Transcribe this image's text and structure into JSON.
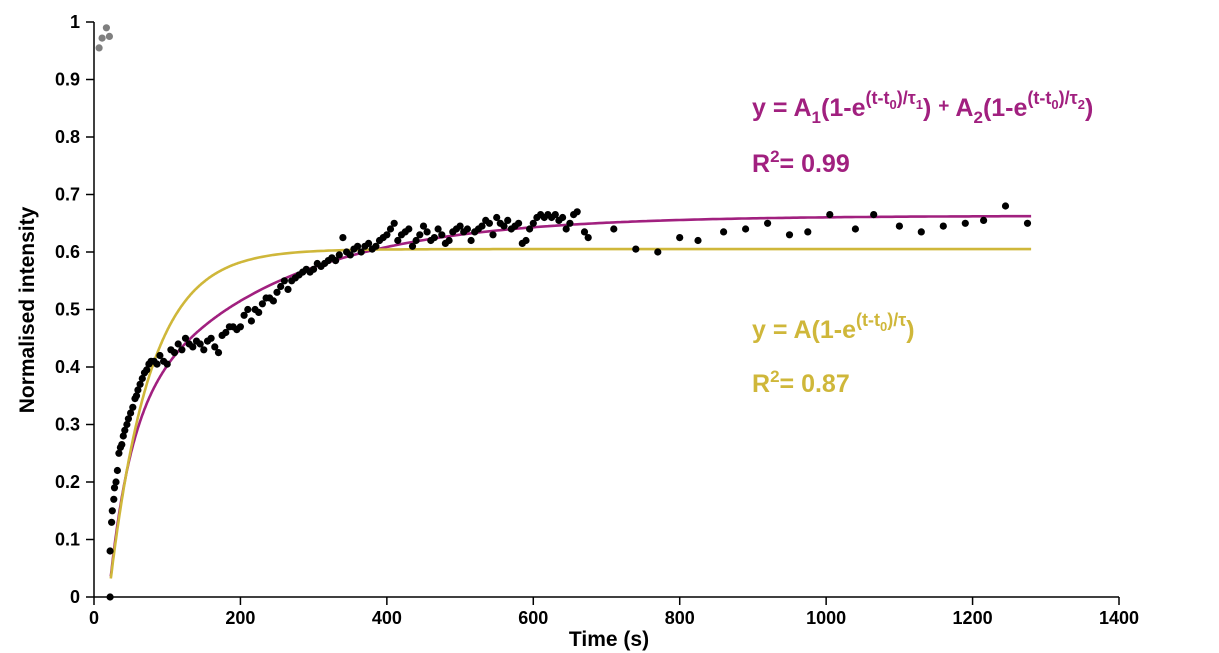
{
  "chart_data": {
    "type": "scatter",
    "title": "",
    "xlabel": "Time (s)",
    "ylabel": "Normalised intensity",
    "xlim": [
      0,
      1400
    ],
    "ylim": [
      0,
      1
    ],
    "grid": false,
    "x_ticks": [
      0,
      200,
      400,
      600,
      800,
      1000,
      1200,
      1400
    ],
    "y_ticks": [
      0,
      0.1,
      0.2,
      0.3,
      0.4,
      0.5,
      0.6,
      0.7,
      0.8,
      0.9,
      1
    ],
    "x_tick_labels": [
      "0",
      "200",
      "400",
      "600",
      "800",
      "1000",
      "1200",
      "1400"
    ],
    "y_tick_labels": [
      "0",
      "0.1",
      "0.2",
      "0.3",
      "0.4",
      "0.5",
      "0.6",
      "0.7",
      "0.8",
      "0.9",
      "1"
    ],
    "series": [
      {
        "color": "#7f7f7f",
        "type": "scatter",
        "points": [
          [
            7,
            0.955
          ],
          [
            11,
            0.972
          ],
          [
            17,
            0.99
          ],
          [
            21,
            0.975
          ]
        ]
      },
      {
        "color": "#000000",
        "type": "scatter",
        "points": [
          [
            22,
            0
          ],
          [
            22,
            0.08
          ],
          [
            24,
            0.13
          ],
          [
            25,
            0.15
          ],
          [
            27,
            0.17
          ],
          [
            28,
            0.19
          ],
          [
            30,
            0.2
          ],
          [
            32,
            0.22
          ],
          [
            34,
            0.25
          ],
          [
            36,
            0.26
          ],
          [
            38,
            0.265
          ],
          [
            40,
            0.28
          ],
          [
            42,
            0.29
          ],
          [
            45,
            0.3
          ],
          [
            47,
            0.31
          ],
          [
            50,
            0.32
          ],
          [
            53,
            0.33
          ],
          [
            56,
            0.345
          ],
          [
            58,
            0.35
          ],
          [
            60,
            0.36
          ],
          [
            63,
            0.37
          ],
          [
            66,
            0.38
          ],
          [
            69,
            0.39
          ],
          [
            72,
            0.395
          ],
          [
            75,
            0.405
          ],
          [
            78,
            0.41
          ],
          [
            82,
            0.41
          ],
          [
            86,
            0.405
          ],
          [
            90,
            0.42
          ],
          [
            95,
            0.41
          ],
          [
            100,
            0.405
          ],
          [
            105,
            0.43
          ],
          [
            110,
            0.425
          ],
          [
            115,
            0.44
          ],
          [
            120,
            0.43
          ],
          [
            125,
            0.45
          ],
          [
            130,
            0.44
          ],
          [
            135,
            0.435
          ],
          [
            140,
            0.445
          ],
          [
            145,
            0.44
          ],
          [
            150,
            0.43
          ],
          [
            155,
            0.445
          ],
          [
            160,
            0.45
          ],
          [
            165,
            0.435
          ],
          [
            170,
            0.425
          ],
          [
            175,
            0.455
          ],
          [
            180,
            0.46
          ],
          [
            185,
            0.47
          ],
          [
            190,
            0.47
          ],
          [
            195,
            0.465
          ],
          [
            200,
            0.47
          ],
          [
            205,
            0.49
          ],
          [
            210,
            0.5
          ],
          [
            215,
            0.48
          ],
          [
            220,
            0.5
          ],
          [
            225,
            0.495
          ],
          [
            230,
            0.51
          ],
          [
            235,
            0.52
          ],
          [
            240,
            0.52
          ],
          [
            245,
            0.515
          ],
          [
            250,
            0.53
          ],
          [
            255,
            0.54
          ],
          [
            260,
            0.55
          ],
          [
            265,
            0.535
          ],
          [
            270,
            0.55
          ],
          [
            275,
            0.555
          ],
          [
            280,
            0.56
          ],
          [
            285,
            0.565
          ],
          [
            290,
            0.57
          ],
          [
            295,
            0.565
          ],
          [
            300,
            0.57
          ],
          [
            305,
            0.58
          ],
          [
            310,
            0.575
          ],
          [
            315,
            0.58
          ],
          [
            320,
            0.585
          ],
          [
            325,
            0.59
          ],
          [
            330,
            0.585
          ],
          [
            335,
            0.595
          ],
          [
            340,
            0.625
          ],
          [
            345,
            0.6
          ],
          [
            350,
            0.595
          ],
          [
            355,
            0.605
          ],
          [
            360,
            0.61
          ],
          [
            365,
            0.6
          ],
          [
            370,
            0.61
          ],
          [
            375,
            0.615
          ],
          [
            380,
            0.605
          ],
          [
            385,
            0.61
          ],
          [
            390,
            0.62
          ],
          [
            395,
            0.625
          ],
          [
            400,
            0.63
          ],
          [
            405,
            0.64
          ],
          [
            410,
            0.65
          ],
          [
            415,
            0.62
          ],
          [
            420,
            0.63
          ],
          [
            425,
            0.635
          ],
          [
            430,
            0.64
          ],
          [
            435,
            0.61
          ],
          [
            440,
            0.62
          ],
          [
            445,
            0.63
          ],
          [
            450,
            0.645
          ],
          [
            455,
            0.635
          ],
          [
            460,
            0.62
          ],
          [
            465,
            0.625
          ],
          [
            470,
            0.64
          ],
          [
            475,
            0.63
          ],
          [
            480,
            0.615
          ],
          [
            485,
            0.62
          ],
          [
            490,
            0.635
          ],
          [
            495,
            0.64
          ],
          [
            500,
            0.645
          ],
          [
            505,
            0.635
          ],
          [
            510,
            0.64
          ],
          [
            515,
            0.62
          ],
          [
            520,
            0.635
          ],
          [
            525,
            0.64
          ],
          [
            530,
            0.645
          ],
          [
            535,
            0.655
          ],
          [
            540,
            0.65
          ],
          [
            545,
            0.63
          ],
          [
            550,
            0.66
          ],
          [
            555,
            0.65
          ],
          [
            560,
            0.645
          ],
          [
            565,
            0.655
          ],
          [
            570,
            0.64
          ],
          [
            575,
            0.645
          ],
          [
            580,
            0.65
          ],
          [
            585,
            0.615
          ],
          [
            590,
            0.62
          ],
          [
            595,
            0.64
          ],
          [
            600,
            0.65
          ],
          [
            605,
            0.66
          ],
          [
            610,
            0.665
          ],
          [
            615,
            0.66
          ],
          [
            620,
            0.665
          ],
          [
            625,
            0.66
          ],
          [
            630,
            0.665
          ],
          [
            635,
            0.655
          ],
          [
            640,
            0.66
          ],
          [
            645,
            0.64
          ],
          [
            650,
            0.65
          ],
          [
            655,
            0.665
          ],
          [
            660,
            0.67
          ],
          [
            670,
            0.635
          ],
          [
            675,
            0.625
          ],
          [
            710,
            0.64
          ],
          [
            740,
            0.605
          ],
          [
            770,
            0.6
          ],
          [
            800,
            0.625
          ],
          [
            825,
            0.62
          ],
          [
            860,
            0.635
          ],
          [
            890,
            0.64
          ],
          [
            920,
            0.65
          ],
          [
            950,
            0.63
          ],
          [
            975,
            0.635
          ],
          [
            1005,
            0.665
          ],
          [
            1040,
            0.64
          ],
          [
            1065,
            0.665
          ],
          [
            1100,
            0.645
          ],
          [
            1130,
            0.635
          ],
          [
            1160,
            0.645
          ],
          [
            1190,
            0.65
          ],
          [
            1215,
            0.655
          ],
          [
            1245,
            0.68
          ],
          [
            1275,
            0.65
          ]
        ]
      },
      {
        "color": "#a1207f",
        "type": "line",
        "model": "y = A1(1-e^(-(t-t0)/tau1)) + A2(1-e^(-(t-t0)/tau2))",
        "params": {
          "A1": 0.3,
          "tau1": 28,
          "A2": 0.363,
          "tau2": 200,
          "t0": 20
        },
        "x_range": [
          20,
          1280
        ]
      },
      {
        "color": "#cfb73a",
        "type": "line",
        "model": "y = A(1-e^(-(t-t0)/tau))",
        "params": {
          "A": 0.605,
          "tau": 55,
          "t0": 20
        },
        "x_range": [
          20,
          1280
        ]
      }
    ],
    "annotations": {
      "double_eq": {
        "y": "y",
        "A1": "A",
        "A1_sub": "1",
        "A2": "A",
        "A2_sub": "2",
        "e": "e",
        "t": "t",
        "t0": "t",
        "t0_sub": "0",
        "tau": "τ",
        "tau1_sub": "1",
        "tau2_sub": "2",
        "one_minus": "(1-",
        "plus": "+",
        "r2": "R",
        "r2_sup": "2",
        "r2_value": "= 0.99"
      },
      "single_eq": {
        "y": "y",
        "A": "A",
        "e": "e",
        "t": "t",
        "t0_sub": "0",
        "tau": "τ",
        "one_minus": "(1-",
        "r2": "R",
        "r2_sup": "2",
        "r2_value": "= 0.87"
      }
    }
  }
}
